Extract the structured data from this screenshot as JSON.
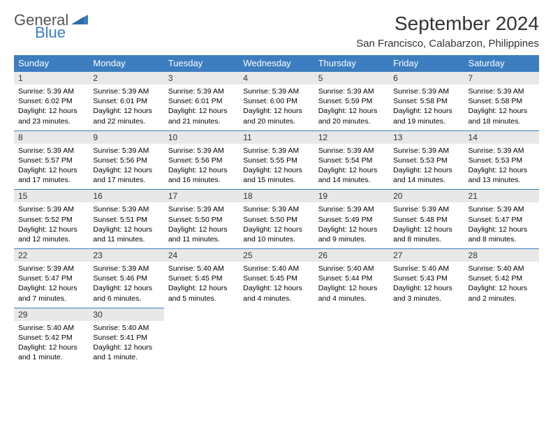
{
  "logo": {
    "general": "General",
    "blue": "Blue"
  },
  "title": "September 2024",
  "location": "San Francisco, Calabarzon, Philippines",
  "weekdays": [
    "Sunday",
    "Monday",
    "Tuesday",
    "Wednesday",
    "Thursday",
    "Friday",
    "Saturday"
  ],
  "colors": {
    "header_bg": "#3c7ebf",
    "header_text": "#ffffff",
    "daynum_bg": "#e8e8e8",
    "border": "#3c7ebf",
    "logo_gray": "#555555",
    "logo_blue": "#3c7ebf"
  },
  "fonts": {
    "title_size": 28,
    "location_size": 15,
    "weekday_size": 13,
    "daynum_size": 12,
    "body_size": 10.5
  },
  "days": [
    {
      "n": "1",
      "sunrise": "Sunrise: 5:39 AM",
      "sunset": "Sunset: 6:02 PM",
      "daylight": "Daylight: 12 hours and 23 minutes."
    },
    {
      "n": "2",
      "sunrise": "Sunrise: 5:39 AM",
      "sunset": "Sunset: 6:01 PM",
      "daylight": "Daylight: 12 hours and 22 minutes."
    },
    {
      "n": "3",
      "sunrise": "Sunrise: 5:39 AM",
      "sunset": "Sunset: 6:01 PM",
      "daylight": "Daylight: 12 hours and 21 minutes."
    },
    {
      "n": "4",
      "sunrise": "Sunrise: 5:39 AM",
      "sunset": "Sunset: 6:00 PM",
      "daylight": "Daylight: 12 hours and 20 minutes."
    },
    {
      "n": "5",
      "sunrise": "Sunrise: 5:39 AM",
      "sunset": "Sunset: 5:59 PM",
      "daylight": "Daylight: 12 hours and 20 minutes."
    },
    {
      "n": "6",
      "sunrise": "Sunrise: 5:39 AM",
      "sunset": "Sunset: 5:58 PM",
      "daylight": "Daylight: 12 hours and 19 minutes."
    },
    {
      "n": "7",
      "sunrise": "Sunrise: 5:39 AM",
      "sunset": "Sunset: 5:58 PM",
      "daylight": "Daylight: 12 hours and 18 minutes."
    },
    {
      "n": "8",
      "sunrise": "Sunrise: 5:39 AM",
      "sunset": "Sunset: 5:57 PM",
      "daylight": "Daylight: 12 hours and 17 minutes."
    },
    {
      "n": "9",
      "sunrise": "Sunrise: 5:39 AM",
      "sunset": "Sunset: 5:56 PM",
      "daylight": "Daylight: 12 hours and 17 minutes."
    },
    {
      "n": "10",
      "sunrise": "Sunrise: 5:39 AM",
      "sunset": "Sunset: 5:56 PM",
      "daylight": "Daylight: 12 hours and 16 minutes."
    },
    {
      "n": "11",
      "sunrise": "Sunrise: 5:39 AM",
      "sunset": "Sunset: 5:55 PM",
      "daylight": "Daylight: 12 hours and 15 minutes."
    },
    {
      "n": "12",
      "sunrise": "Sunrise: 5:39 AM",
      "sunset": "Sunset: 5:54 PM",
      "daylight": "Daylight: 12 hours and 14 minutes."
    },
    {
      "n": "13",
      "sunrise": "Sunrise: 5:39 AM",
      "sunset": "Sunset: 5:53 PM",
      "daylight": "Daylight: 12 hours and 14 minutes."
    },
    {
      "n": "14",
      "sunrise": "Sunrise: 5:39 AM",
      "sunset": "Sunset: 5:53 PM",
      "daylight": "Daylight: 12 hours and 13 minutes."
    },
    {
      "n": "15",
      "sunrise": "Sunrise: 5:39 AM",
      "sunset": "Sunset: 5:52 PM",
      "daylight": "Daylight: 12 hours and 12 minutes."
    },
    {
      "n": "16",
      "sunrise": "Sunrise: 5:39 AM",
      "sunset": "Sunset: 5:51 PM",
      "daylight": "Daylight: 12 hours and 11 minutes."
    },
    {
      "n": "17",
      "sunrise": "Sunrise: 5:39 AM",
      "sunset": "Sunset: 5:50 PM",
      "daylight": "Daylight: 12 hours and 11 minutes."
    },
    {
      "n": "18",
      "sunrise": "Sunrise: 5:39 AM",
      "sunset": "Sunset: 5:50 PM",
      "daylight": "Daylight: 12 hours and 10 minutes."
    },
    {
      "n": "19",
      "sunrise": "Sunrise: 5:39 AM",
      "sunset": "Sunset: 5:49 PM",
      "daylight": "Daylight: 12 hours and 9 minutes."
    },
    {
      "n": "20",
      "sunrise": "Sunrise: 5:39 AM",
      "sunset": "Sunset: 5:48 PM",
      "daylight": "Daylight: 12 hours and 8 minutes."
    },
    {
      "n": "21",
      "sunrise": "Sunrise: 5:39 AM",
      "sunset": "Sunset: 5:47 PM",
      "daylight": "Daylight: 12 hours and 8 minutes."
    },
    {
      "n": "22",
      "sunrise": "Sunrise: 5:39 AM",
      "sunset": "Sunset: 5:47 PM",
      "daylight": "Daylight: 12 hours and 7 minutes."
    },
    {
      "n": "23",
      "sunrise": "Sunrise: 5:39 AM",
      "sunset": "Sunset: 5:46 PM",
      "daylight": "Daylight: 12 hours and 6 minutes."
    },
    {
      "n": "24",
      "sunrise": "Sunrise: 5:40 AM",
      "sunset": "Sunset: 5:45 PM",
      "daylight": "Daylight: 12 hours and 5 minutes."
    },
    {
      "n": "25",
      "sunrise": "Sunrise: 5:40 AM",
      "sunset": "Sunset: 5:45 PM",
      "daylight": "Daylight: 12 hours and 4 minutes."
    },
    {
      "n": "26",
      "sunrise": "Sunrise: 5:40 AM",
      "sunset": "Sunset: 5:44 PM",
      "daylight": "Daylight: 12 hours and 4 minutes."
    },
    {
      "n": "27",
      "sunrise": "Sunrise: 5:40 AM",
      "sunset": "Sunset: 5:43 PM",
      "daylight": "Daylight: 12 hours and 3 minutes."
    },
    {
      "n": "28",
      "sunrise": "Sunrise: 5:40 AM",
      "sunset": "Sunset: 5:42 PM",
      "daylight": "Daylight: 12 hours and 2 minutes."
    },
    {
      "n": "29",
      "sunrise": "Sunrise: 5:40 AM",
      "sunset": "Sunset: 5:42 PM",
      "daylight": "Daylight: 12 hours and 1 minute."
    },
    {
      "n": "30",
      "sunrise": "Sunrise: 5:40 AM",
      "sunset": "Sunset: 5:41 PM",
      "daylight": "Daylight: 12 hours and 1 minute."
    }
  ]
}
